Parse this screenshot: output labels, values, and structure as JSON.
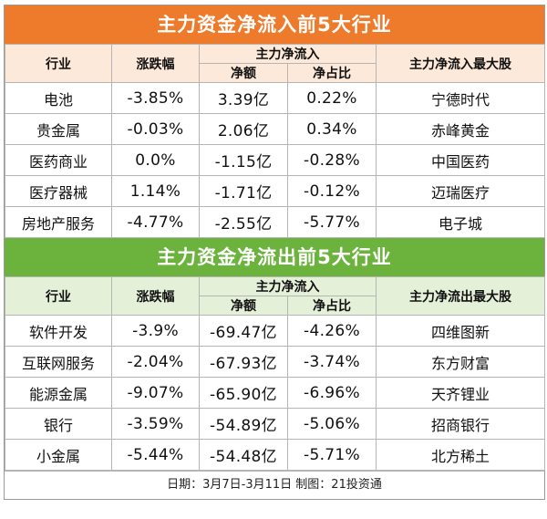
{
  "inflow": {
    "title": "主力资金净流入前5大行业",
    "headers": {
      "industry": "行业",
      "change": "涨跌幅",
      "net_group": "主力净流入",
      "net_amount": "净额",
      "net_ratio": "净占比",
      "top_stock": "主力净流入最大股"
    },
    "rows": [
      {
        "industry": "电池",
        "change": "-3.85%",
        "amount": "3.39亿",
        "ratio": "0.22%",
        "stock": "宁德时代"
      },
      {
        "industry": "贵金属",
        "change": "-0.03%",
        "amount": "2.06亿",
        "ratio": "0.34%",
        "stock": "赤峰黄金"
      },
      {
        "industry": "医药商业",
        "change": "0.0%",
        "amount": "-1.15亿",
        "ratio": "-0.28%",
        "stock": "中国医药"
      },
      {
        "industry": "医疗器械",
        "change": "1.14%",
        "amount": "-1.71亿",
        "ratio": "-0.12%",
        "stock": "迈瑞医疗"
      },
      {
        "industry": "房地产服务",
        "change": "-4.77%",
        "amount": "-2.55亿",
        "ratio": "-5.77%",
        "stock": "电子城"
      }
    ]
  },
  "outflow": {
    "title": "主力资金净流出前5大行业",
    "headers": {
      "industry": "行业",
      "change": "涨跌幅",
      "net_group": "主力净流入",
      "net_amount": "净额",
      "net_ratio": "净占比",
      "top_stock": "主力净流出最大股"
    },
    "rows": [
      {
        "industry": "软件开发",
        "change": "-3.9%",
        "amount": "-69.47亿",
        "ratio": "-4.26%",
        "stock": "四维图新"
      },
      {
        "industry": "互联网服务",
        "change": "-2.04%",
        "amount": "-67.93亿",
        "ratio": "-3.74%",
        "stock": "东方财富"
      },
      {
        "industry": "能源金属",
        "change": "-9.07%",
        "amount": "-65.90亿",
        "ratio": "-6.96%",
        "stock": "天齐锂业"
      },
      {
        "industry": "银行",
        "change": "-3.59%",
        "amount": "-54.89亿",
        "ratio": "-5.06%",
        "stock": "招商银行"
      },
      {
        "industry": "小金属",
        "change": "-5.44%",
        "amount": "-54.48亿",
        "ratio": "-5.71%",
        "stock": "北方稀土"
      }
    ]
  },
  "footer": "日期：3月7日-3月11日 制图：21投资通",
  "colors": {
    "orange": "#ee7b2c",
    "green": "#6cb33e"
  }
}
